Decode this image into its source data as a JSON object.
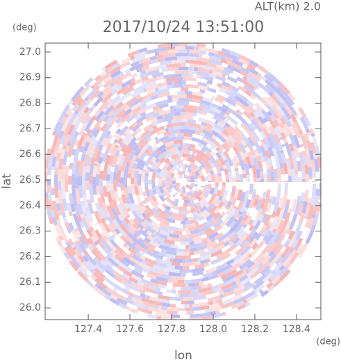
{
  "chart_data": {
    "type": "radar-ppi",
    "title": "2017/10/24 13:51:00",
    "altitude_label": "ALT(km) 2.0",
    "x_label": "lon",
    "y_label": "lat",
    "x_unit": "(deg)",
    "y_unit": "(deg)",
    "xlim": [
      127.193,
      128.517
    ],
    "ylim": [
      25.954,
      27.035
    ],
    "xticks": [
      127.4,
      127.6,
      127.8,
      {
        "value": 128,
        "label": "128.0"
      },
      128.2,
      128.4
    ],
    "yticks": [
      {
        "value": 26,
        "label": "26.0"
      },
      26.1,
      26.2,
      26.3,
      26.4,
      26.5,
      26.6,
      26.7,
      26.8,
      26.9,
      {
        "value": 27,
        "label": "27.0"
      }
    ]
  }
}
